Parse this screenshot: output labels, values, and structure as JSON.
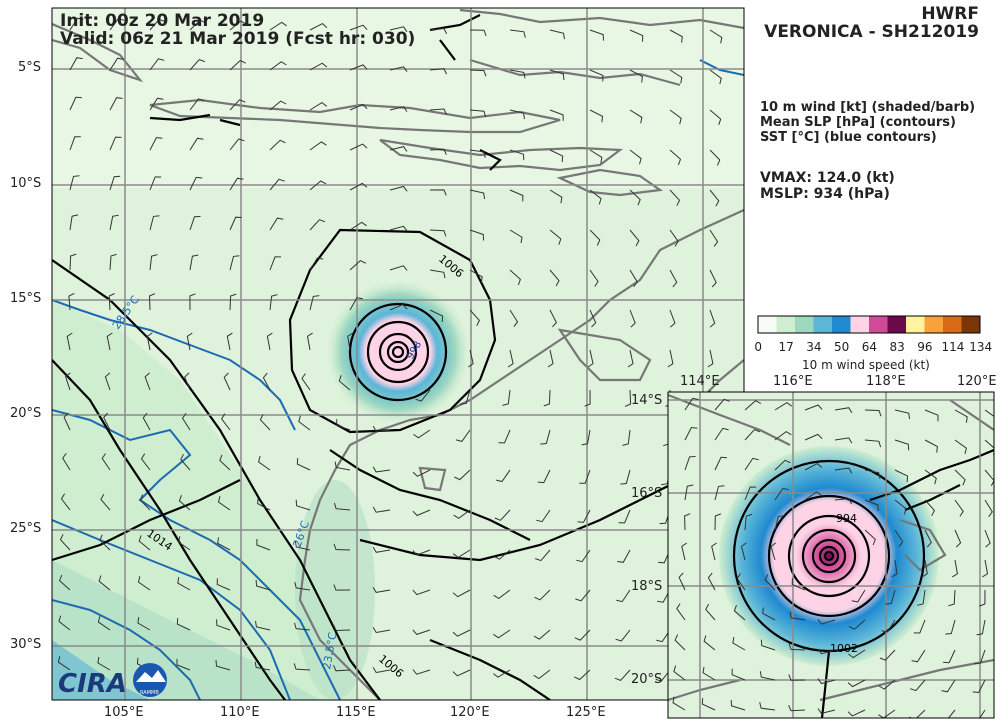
{
  "header": {
    "init": "Init:   00z 20 Mar 2019",
    "valid": "Valid: 06z 21 Mar 2019 (Fcst hr: 030)",
    "model": "HWRF",
    "storm": "VERONICA - SH212019"
  },
  "fields": [
    "10 m wind [kt] (shaded/barb)",
    "Mean SLP [hPa] (contours)",
    "SST [°C] (blue contours)"
  ],
  "stats": {
    "vmax": "VMAX: 124.0 (kt)",
    "mslp": "MSLP:  934 (hPa)"
  },
  "colorbar": {
    "ticks": [
      "0",
      "17",
      "34",
      "50",
      "64",
      "83",
      "96",
      "114",
      "134"
    ],
    "label": "10 m wind speed (kt)",
    "colors": [
      "#f7fbf5",
      "#cfeecf",
      "#9ed8c0",
      "#5bb6d8",
      "#1f8ad0",
      "#ffd3e6",
      "#d14a9a",
      "#6b0a4b",
      "#fff3a0",
      "#f9a23a",
      "#d96a16",
      "#7a3608"
    ]
  },
  "main_map": {
    "lat_labels": [
      "5°S",
      "10°S",
      "15°S",
      "20°S",
      "25°S",
      "30°S"
    ],
    "lon_labels": [
      "105°E",
      "110°E",
      "115°E",
      "120°E",
      "125°E"
    ],
    "contour_labels": [
      "1006",
      "998",
      "1014",
      "1006",
      "28.5°C",
      "26°C",
      "23.5°C"
    ]
  },
  "inset_map": {
    "lat_labels": [
      "14°S",
      "16°S",
      "18°S",
      "20°S"
    ],
    "lon_labels": [
      "114°E",
      "116°E",
      "118°E",
      "120°E"
    ],
    "contour_labels": [
      "994",
      "1002"
    ]
  },
  "logo": {
    "text": "CIRA",
    "sublabel": "RAMMB"
  }
}
